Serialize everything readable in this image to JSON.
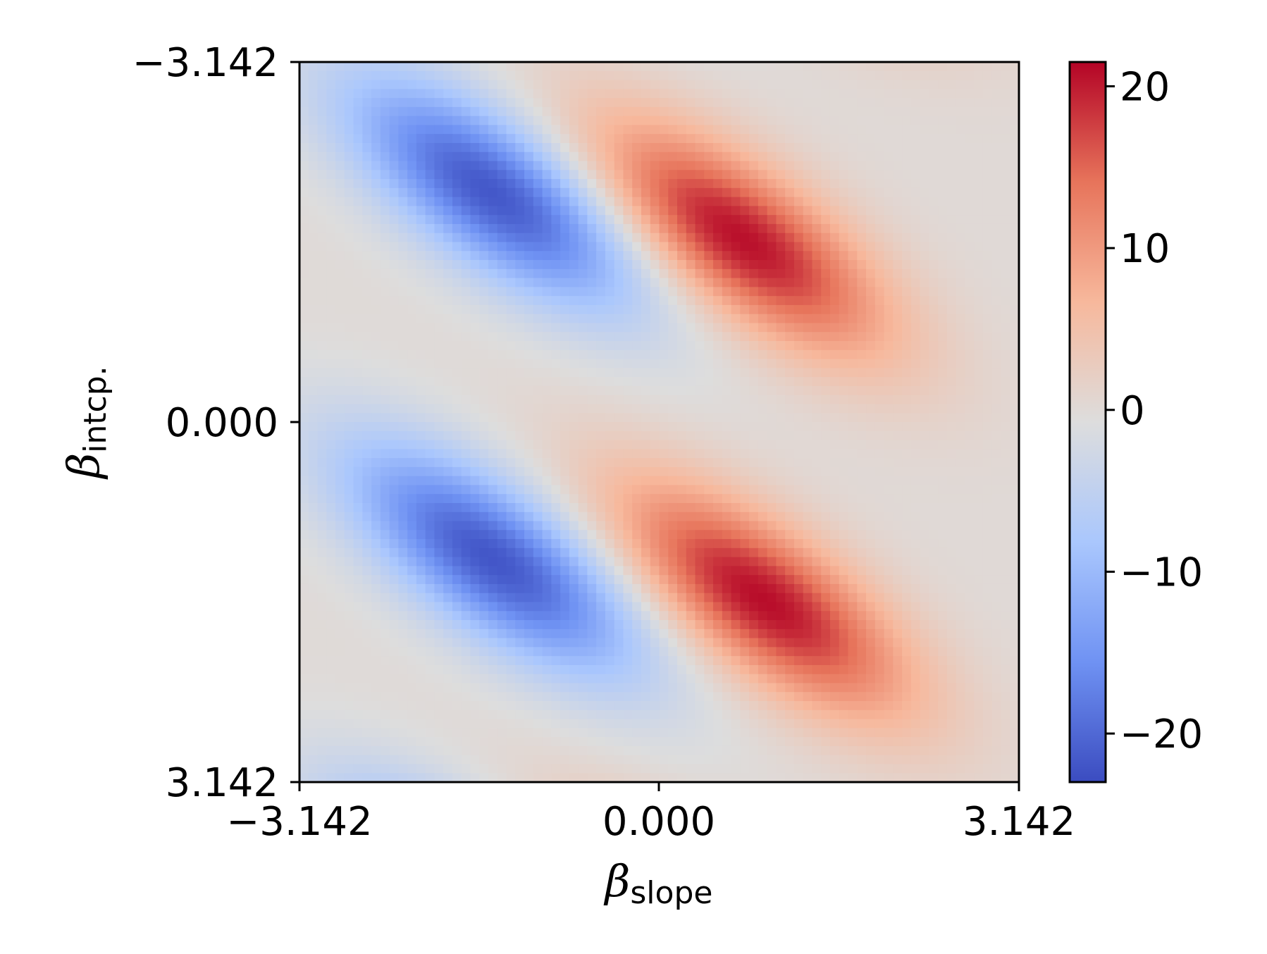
{
  "chart_data": {
    "type": "heatmap",
    "title": "",
    "xlabel": {
      "symbol": "β",
      "subscript": "slope"
    },
    "ylabel": {
      "symbol": "β",
      "subscript": "intcp."
    },
    "x_ticks": [
      "−3.142",
      "0.000",
      "3.142"
    ],
    "y_ticks": [
      "−3.142",
      "0.000",
      "3.142"
    ],
    "x_range": [
      -3.142,
      3.142
    ],
    "y_range": [
      -3.142,
      3.142
    ],
    "y_axis_inverted": true,
    "colormap": "coolwarm",
    "colormap_stops": [
      "#3b4cc0",
      "#6f92f3",
      "#aac7fd",
      "#dddddd",
      "#f7b89c",
      "#e7745b",
      "#b40426"
    ],
    "colorbar": {
      "min": -23,
      "max": 21.5,
      "ticks": [
        "20",
        "10",
        "0",
        "−10",
        "−20"
      ],
      "tick_values": [
        20,
        10,
        0,
        -10,
        -20
      ]
    },
    "grid": false,
    "legend": "none",
    "features": [
      {
        "kind": "peak",
        "sign": "positive",
        "x": 0.7,
        "y": -1.6,
        "value": 21
      },
      {
        "kind": "peak",
        "sign": "positive",
        "x": 0.9,
        "y": 1.55,
        "value": 21
      },
      {
        "kind": "trough",
        "sign": "negative",
        "x": -1.45,
        "y": -2.0,
        "value": -22
      },
      {
        "kind": "trough",
        "sign": "negative",
        "x": -1.45,
        "y": 1.2,
        "value": -22
      }
    ]
  }
}
